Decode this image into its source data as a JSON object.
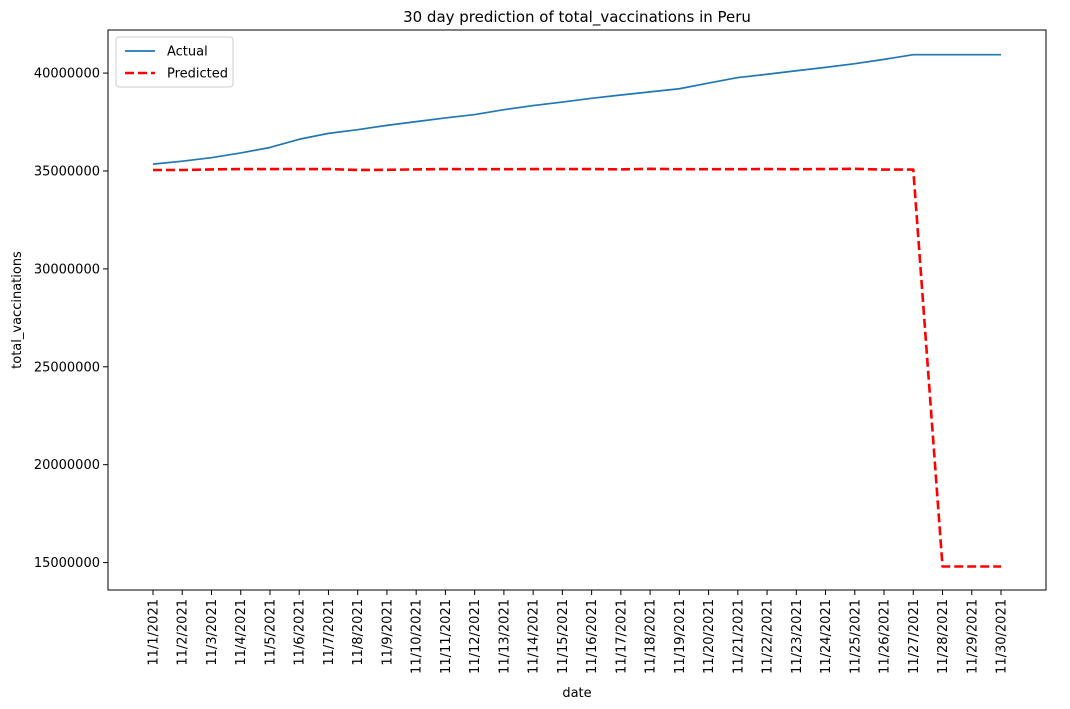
{
  "chart_data": {
    "type": "line",
    "title": "30 day prediction of total_vaccinations in Peru",
    "xlabel": "date",
    "ylabel": "total_vaccinations",
    "categories": [
      "11/1/2021",
      "11/2/2021",
      "11/3/2021",
      "11/4/2021",
      "11/5/2021",
      "11/6/2021",
      "11/7/2021",
      "11/8/2021",
      "11/9/2021",
      "11/10/2021",
      "11/11/2021",
      "11/12/2021",
      "11/13/2021",
      "11/14/2021",
      "11/15/2021",
      "11/16/2021",
      "11/17/2021",
      "11/18/2021",
      "11/19/2021",
      "11/20/2021",
      "11/21/2021",
      "11/22/2021",
      "11/23/2021",
      "11/24/2021",
      "11/25/2021",
      "11/26/2021",
      "11/27/2021",
      "11/28/2021",
      "11/29/2021",
      "11/30/2021"
    ],
    "yticks": [
      15000000,
      20000000,
      25000000,
      30000000,
      35000000,
      40000000
    ],
    "ytick_labels": [
      "15000000",
      "20000000",
      "25000000",
      "30000000",
      "35000000",
      "40000000"
    ],
    "ylim": [
      13600000,
      42200000
    ],
    "grid": false,
    "legend_position": "top-left",
    "series": [
      {
        "name": "Actual",
        "color": "#1f77b4",
        "style": "solid",
        "values": [
          35350000,
          35500000,
          35680000,
          35920000,
          36200000,
          36620000,
          36920000,
          37110000,
          37330000,
          37520000,
          37710000,
          37880000,
          38130000,
          38340000,
          38520000,
          38710000,
          38880000,
          39040000,
          39200000,
          39490000,
          39770000,
          39940000,
          40120000,
          40290000,
          40480000,
          40700000,
          40940000,
          40940000,
          40940000,
          40940000
        ]
      },
      {
        "name": "Predicted",
        "color": "#ff0000",
        "style": "dashed",
        "values": [
          35050000,
          35050000,
          35080000,
          35100000,
          35100000,
          35100000,
          35100000,
          35050000,
          35060000,
          35080000,
          35100000,
          35090000,
          35090000,
          35100000,
          35100000,
          35100000,
          35080000,
          35110000,
          35090000,
          35090000,
          35090000,
          35100000,
          35090000,
          35100000,
          35110000,
          35070000,
          35070000,
          14800000,
          14800000,
          14800000
        ]
      }
    ]
  }
}
